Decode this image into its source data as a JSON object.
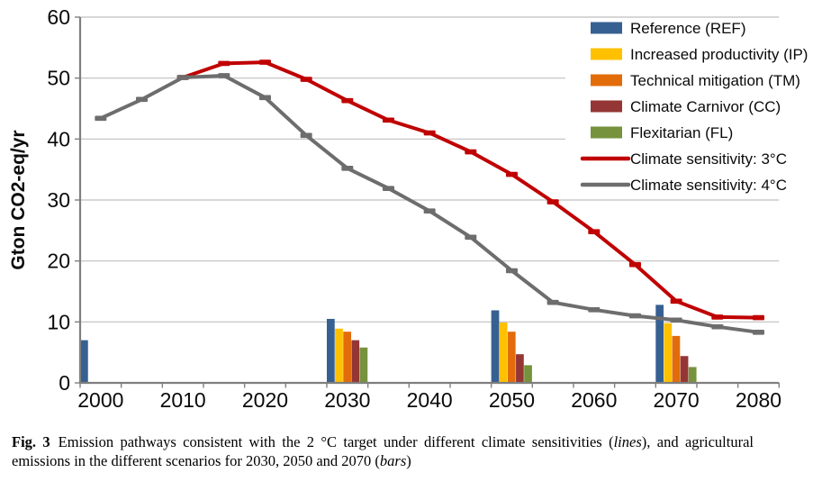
{
  "figure": {
    "caption": {
      "label": "Fig. 3",
      "part1": "Emission pathways consistent with the 2 °C target under different climate sensitivities (",
      "italic1": "lines",
      "part2": "), and agricultural emissions in the different scenarios for 2030, 2050 and 2070 (",
      "italic2": "bars",
      "part3": ")"
    }
  },
  "chart_data": {
    "type": "combo (clustered bars + lines with dash markers)",
    "title": "",
    "xlabel": "",
    "ylabel": "Gton CO2-eq/yr",
    "ylim": [
      0,
      60
    ],
    "yticks": [
      0,
      10,
      20,
      30,
      40,
      50,
      60
    ],
    "xticks": [
      2000,
      2010,
      2020,
      2030,
      2040,
      2050,
      2060,
      2070,
      2080
    ],
    "x_categories": [
      2000,
      2005,
      2010,
      2015,
      2020,
      2025,
      2030,
      2035,
      2040,
      2045,
      2050,
      2055,
      2060,
      2065,
      2070,
      2075,
      2080
    ],
    "grid": "horizontal gridlines every 10, light gray",
    "legend_position": "top-right inside plot area, white background, no border",
    "colors": {
      "gridline": "#BFBFBF",
      "axis": "#7F7F7F",
      "line_3c": "#C00000",
      "line_4c": "#6D6D6D",
      "bar_ref": "#366092",
      "bar_ip": "#FFC000",
      "bar_tm": "#E36C0A",
      "bar_cc": "#943634",
      "bar_fl": "#76923C"
    },
    "lines": [
      {
        "name": "Climate sensitivity: 3°C",
        "color": "#C00000",
        "x": [
          2010,
          2015,
          2020,
          2025,
          2030,
          2035,
          2040,
          2045,
          2050,
          2055,
          2060,
          2065,
          2070,
          2075,
          2080
        ],
        "values": [
          50.1,
          52.4,
          52.6,
          49.8,
          46.3,
          43.1,
          41.0,
          37.9,
          34.2,
          29.7,
          24.8,
          19.4,
          13.4,
          10.8,
          10.7
        ]
      },
      {
        "name": "Climate sensitivity: 4°C",
        "color": "#6D6D6D",
        "x": [
          2000,
          2005,
          2010,
          2015,
          2020,
          2025,
          2030,
          2035,
          2040,
          2045,
          2050,
          2055,
          2060,
          2065,
          2070,
          2075,
          2080
        ],
        "values": [
          43.4,
          46.5,
          50.1,
          50.4,
          46.8,
          40.6,
          35.2,
          31.9,
          28.2,
          23.9,
          18.4,
          13.2,
          12.0,
          11.0,
          10.3,
          9.2,
          8.3
        ]
      }
    ],
    "bars": {
      "years": [
        2000,
        2030,
        2050,
        2070
      ],
      "series": [
        {
          "name": "Reference (REF)",
          "key": "ref",
          "color": "#366092",
          "values": [
            7.0,
            10.5,
            11.9,
            12.8
          ]
        },
        {
          "name": "Increased productivity (IP)",
          "key": "ip",
          "color": "#FFC000",
          "values": [
            null,
            8.9,
            9.9,
            9.8
          ]
        },
        {
          "name": "Technical mitigation (TM)",
          "key": "tm",
          "color": "#E36C0A",
          "values": [
            null,
            8.4,
            8.4,
            7.7
          ]
        },
        {
          "name": "Climate Carnivor (CC)",
          "key": "cc",
          "color": "#943634",
          "values": [
            null,
            7.0,
            4.7,
            4.4
          ]
        },
        {
          "name": "Flexitarian (FL)",
          "key": "fl",
          "color": "#76923C",
          "values": [
            null,
            5.8,
            2.9,
            2.6
          ]
        }
      ]
    },
    "legend": [
      {
        "label": "Reference (REF)",
        "swatch": "bar",
        "color": "#366092"
      },
      {
        "label": "Increased productivity (IP)",
        "swatch": "bar",
        "color": "#FFC000"
      },
      {
        "label": "Technical mitigation (TM)",
        "swatch": "bar",
        "color": "#E36C0A"
      },
      {
        "label": "Climate Carnivor (CC)",
        "swatch": "bar",
        "color": "#943634"
      },
      {
        "label": "Flexitarian (FL)",
        "swatch": "bar",
        "color": "#76923C"
      },
      {
        "label": "Climate sensitivity: 3°C",
        "swatch": "line",
        "color": "#C00000"
      },
      {
        "label": "Climate sensitivity: 4°C",
        "swatch": "line",
        "color": "#6D6D6D"
      }
    ]
  }
}
